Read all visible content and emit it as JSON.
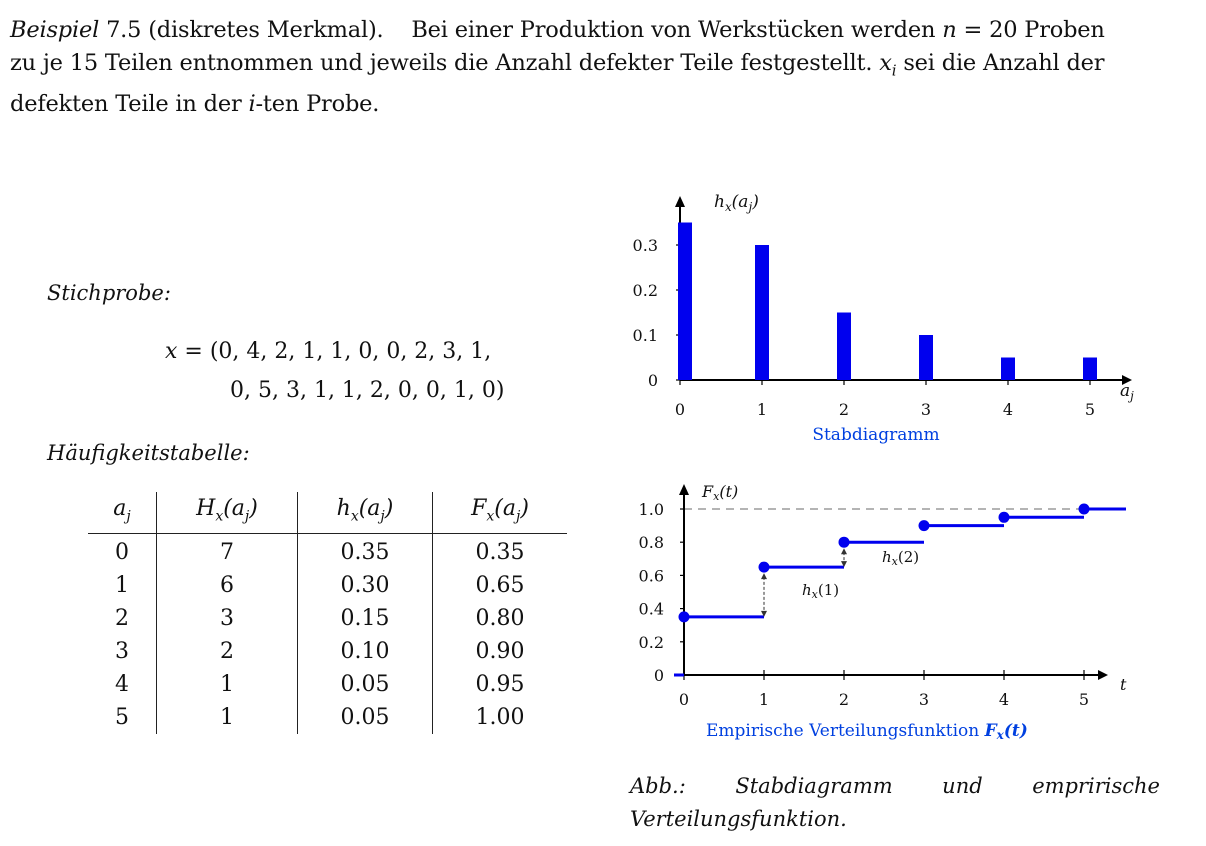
{
  "intro": {
    "example_label": "Beispiel",
    "example_number": "7.5",
    "example_subtitle": "(diskretes Merkmal).",
    "t1": "Bei einer Produktion von Werkstücken werden ",
    "n_var": "n",
    "n_eq": " = 20 Proben",
    "t2": "zu je 15 Teilen entnommen und jeweils die Anzahl defekter Teile festgestellt. ",
    "xi_var": "x",
    "xi_sub": "i",
    "t3": " sei die Anzahl der",
    "t4": "defekten Teile in der ",
    "i_var": "i",
    "t5": "-ten Probe."
  },
  "sample": {
    "heading": "Stichprobe:",
    "line1": "x = (0, 4, 2, 1, 1, 0, 0, 2, 3, 1,",
    "line2": "0, 5, 3, 1, 1, 2, 0, 0, 1, 0)"
  },
  "table": {
    "heading": "Häufigkeitstabelle:",
    "headers": [
      "aj",
      "Hx(aj)",
      "hx(aj)",
      "Fx(aj)"
    ],
    "rows": [
      [
        "0",
        "7",
        "0.35",
        "0.35"
      ],
      [
        "1",
        "6",
        "0.30",
        "0.65"
      ],
      [
        "2",
        "3",
        "0.15",
        "0.80"
      ],
      [
        "3",
        "2",
        "0.10",
        "0.90"
      ],
      [
        "4",
        "1",
        "0.05",
        "0.95"
      ],
      [
        "5",
        "1",
        "0.05",
        "1.00"
      ]
    ]
  },
  "chart_data": [
    {
      "type": "bar",
      "title": "Stabdiagramm",
      "ylabel": "hx(aj)",
      "xlabel": "aj",
      "categories": [
        0,
        1,
        2,
        3,
        4,
        5
      ],
      "values": [
        0.35,
        0.3,
        0.15,
        0.1,
        0.05,
        0.05
      ],
      "ylim": [
        0,
        0.35
      ],
      "yticks": [
        "0",
        "0.1",
        "0.2",
        "0.3"
      ],
      "xticks": [
        "0",
        "1",
        "2",
        "3",
        "4",
        "5"
      ],
      "grid": false,
      "bar_color": "#0000ee"
    },
    {
      "type": "line",
      "title": "Empirische Verteilungsfunktion Fx(t)",
      "ylabel": "Fx(t)",
      "xlabel": "t",
      "x": [
        0,
        1,
        2,
        3,
        4,
        5
      ],
      "values": [
        0.35,
        0.65,
        0.8,
        0.9,
        0.95,
        1.0
      ],
      "ylim": [
        0,
        1.0
      ],
      "yticks": [
        "0",
        "0.2",
        "0.4",
        "0.6",
        "0.8",
        "1.0"
      ],
      "xticks": [
        "0",
        "1",
        "2",
        "3",
        "4",
        "5"
      ],
      "annotations": [
        "hx(1)",
        "hx(2)"
      ],
      "grid": false,
      "line_color": "#0000ee"
    }
  ],
  "caption": {
    "w1": "Abb.:",
    "w2": "Stabdiagramm",
    "w3": "und",
    "w4": "emprirische",
    "line2": "Verteilungsfunktion."
  }
}
